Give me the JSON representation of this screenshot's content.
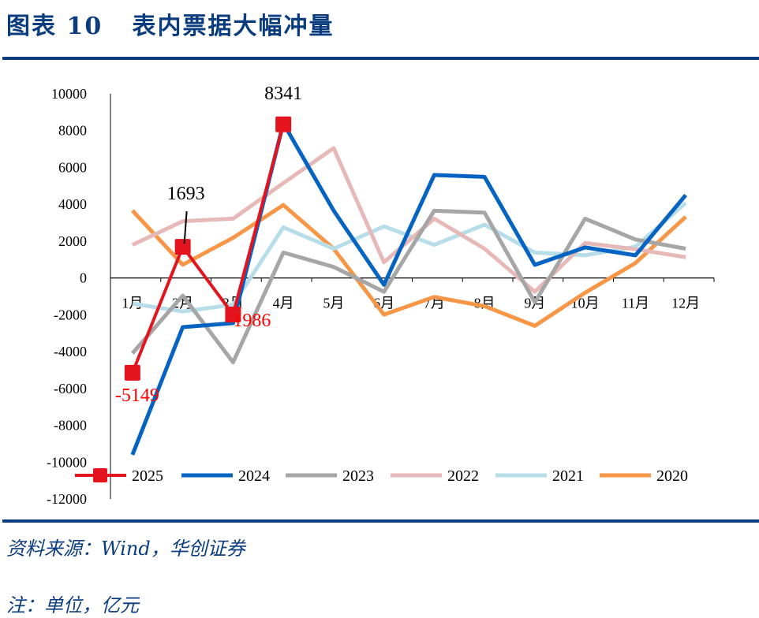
{
  "header": {
    "title": "图表 10   表内票据大幅冲量"
  },
  "footer": {
    "source": "资料来源：Wind，华创证券",
    "note": "注：单位，亿元"
  },
  "chart_data": {
    "type": "line",
    "title": "",
    "xlabel": "",
    "ylabel": "",
    "categories": [
      "1月",
      "2月",
      "3月",
      "4月",
      "5月",
      "6月",
      "7月",
      "8月",
      "9月",
      "10月",
      "11月",
      "12月"
    ],
    "ylim": [
      -12000,
      10000
    ],
    "yticks": [
      10000,
      8000,
      6000,
      4000,
      2000,
      0,
      -2000,
      -4000,
      -6000,
      -8000,
      -10000,
      -12000
    ],
    "grid": false,
    "legend_position": "bottom",
    "series": [
      {
        "name": "2025",
        "color": "#E3141E",
        "marker": "square",
        "values": [
          -5149,
          1693,
          -1986,
          8341,
          null,
          null,
          null,
          null,
          null,
          null,
          null,
          null
        ]
      },
      {
        "name": "2024",
        "color": "#0563C1",
        "values": [
          -9600,
          -2670,
          -2450,
          8400,
          3660,
          -370,
          5590,
          5490,
          710,
          1660,
          1230,
          4500
        ]
      },
      {
        "name": "2023",
        "color": "#A6A6A6",
        "values": [
          -4090,
          -960,
          -4580,
          1380,
          600,
          -750,
          3650,
          3550,
          -1320,
          3220,
          2090,
          1590
        ]
      },
      {
        "name": "2022",
        "color": "#E6B9B8",
        "values": [
          1800,
          3080,
          3220,
          5150,
          7050,
          850,
          3220,
          1590,
          -750,
          1900,
          1560,
          1130
        ]
      },
      {
        "name": "2021",
        "color": "#B7DEE8",
        "values": [
          -1390,
          -1820,
          -1450,
          2750,
          1590,
          2800,
          1800,
          2890,
          1380,
          1230,
          1700,
          4070
        ]
      },
      {
        "name": "2020",
        "color": "#F79646",
        "values": [
          3660,
          720,
          2180,
          3960,
          1590,
          -1990,
          -1030,
          -1530,
          -2600,
          -800,
          810,
          3320
        ]
      }
    ],
    "annotations": [
      {
        "text": "8341",
        "month": "4月",
        "color": "#000000"
      },
      {
        "text": "1693",
        "month": "2月",
        "color": "#000000"
      },
      {
        "text": "-1986",
        "month": "3月",
        "color": "#FF0000"
      },
      {
        "text": "-5149",
        "month": "1月",
        "color": "#FF0000"
      }
    ]
  }
}
